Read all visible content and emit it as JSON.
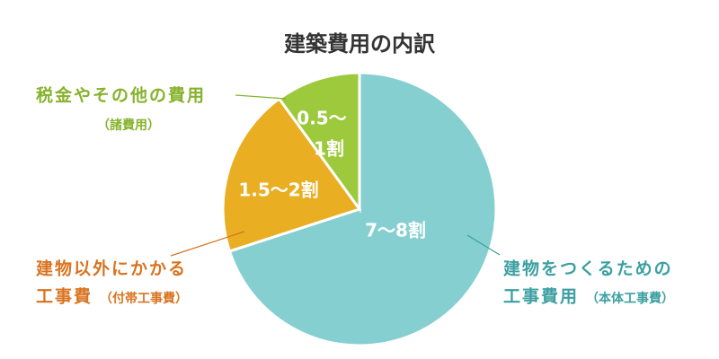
{
  "chart_data": {
    "type": "pie",
    "title": "建築費用の内訳",
    "values": [
      70,
      20,
      10
    ],
    "value_labels": [
      [
        "7〜8割"
      ],
      [
        "1.5〜2割"
      ],
      [
        "0.5〜",
        "1割"
      ]
    ],
    "labels": [
      {
        "lines": [
          "建物をつくるための",
          "工事費用"
        ],
        "note": "（本体工事費）"
      },
      {
        "lines": [
          "建物以外にかかる",
          "工事費"
        ],
        "note": "（付帯工事費）"
      },
      {
        "lines": [
          "税金やその他の費用"
        ],
        "note": "（諸費用）"
      }
    ],
    "colors": [
      "#86cfd1",
      "#e9ae22",
      "#9dc93c"
    ],
    "label_colors": [
      "#3c9fa1",
      "#d9731f",
      "#86b22c"
    ]
  }
}
